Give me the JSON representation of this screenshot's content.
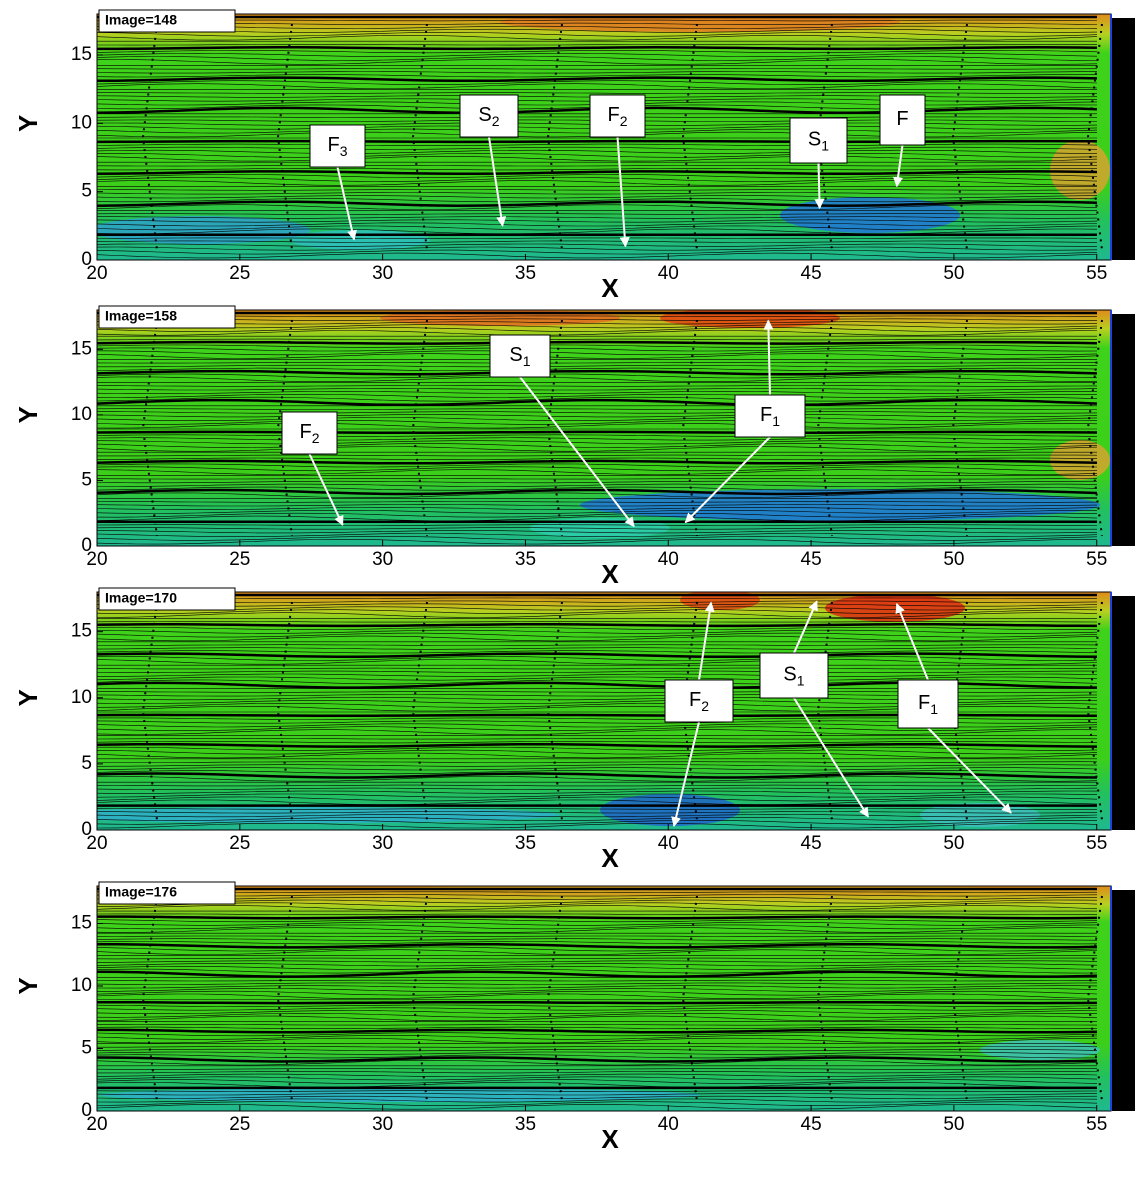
{
  "chart_data": [
    {
      "type": "streamline",
      "title": "Image=148",
      "xlabel": "X",
      "ylabel": "Y",
      "xlim": [
        20,
        55.5
      ],
      "ylim": [
        0,
        18
      ],
      "xticks": [
        20,
        25,
        30,
        35,
        40,
        45,
        50,
        55
      ],
      "yticks": [
        0,
        5,
        10,
        15
      ],
      "annotations": [
        {
          "text": "F",
          "sub": "3",
          "targets": [
            {
              "x": 29,
              "y": 1.5
            }
          ]
        },
        {
          "text": "S",
          "sub": "2",
          "targets": [
            {
              "x": 34.2,
              "y": 2.5
            }
          ]
        },
        {
          "text": "F",
          "sub": "2",
          "targets": [
            {
              "x": 38.5,
              "y": 1
            }
          ]
        },
        {
          "text": "S",
          "sub": "1",
          "targets": [
            {
              "x": 45.3,
              "y": 3.8
            }
          ]
        },
        {
          "text": "F",
          "targets": [
            {
              "x": 48,
              "y": 5.4
            }
          ]
        }
      ]
    },
    {
      "type": "streamline",
      "title": "Image=158",
      "xlabel": "X",
      "ylabel": "Y",
      "xlim": [
        20,
        55.5
      ],
      "ylim": [
        0,
        18
      ],
      "xticks": [
        20,
        25,
        30,
        35,
        40,
        45,
        50,
        55
      ],
      "yticks": [
        0,
        5,
        10,
        15
      ],
      "annotations": [
        {
          "text": "S",
          "sub": "1",
          "targets": [
            {
              "x": 38.8,
              "y": 1.5
            }
          ]
        },
        {
          "text": "F",
          "sub": "2",
          "targets": [
            {
              "x": 28.6,
              "y": 1.6
            }
          ]
        },
        {
          "text": "F",
          "sub": "1",
          "targets": [
            {
              "x": 40.6,
              "y": 1.8
            },
            {
              "x": 43.5,
              "y": 17.2
            }
          ]
        }
      ]
    },
    {
      "type": "streamline",
      "title": "Image=170",
      "xlabel": "X",
      "ylabel": "Y",
      "xlim": [
        20,
        55.5
      ],
      "ylim": [
        0,
        18
      ],
      "xticks": [
        20,
        25,
        30,
        35,
        40,
        45,
        50,
        55
      ],
      "yticks": [
        0,
        5,
        10,
        15
      ],
      "annotations": [
        {
          "text": "F",
          "sub": "2",
          "targets": [
            {
              "x": 41.5,
              "y": 17.2
            },
            {
              "x": 40.2,
              "y": 0.3
            }
          ]
        },
        {
          "text": "S",
          "sub": "1",
          "targets": [
            {
              "x": 45.2,
              "y": 17.3
            },
            {
              "x": 47,
              "y": 1
            }
          ]
        },
        {
          "text": "F",
          "sub": "1",
          "targets": [
            {
              "x": 48,
              "y": 17.1
            },
            {
              "x": 52,
              "y": 1.3
            }
          ]
        }
      ]
    },
    {
      "type": "streamline",
      "title": "Image=176",
      "xlabel": "X",
      "ylabel": "Y",
      "xlim": [
        20,
        55.5
      ],
      "ylim": [
        0,
        18
      ],
      "xticks": [
        20,
        25,
        30,
        35,
        40,
        45,
        50,
        55
      ],
      "yticks": [
        0,
        5,
        10,
        15
      ],
      "annotations": []
    }
  ]
}
